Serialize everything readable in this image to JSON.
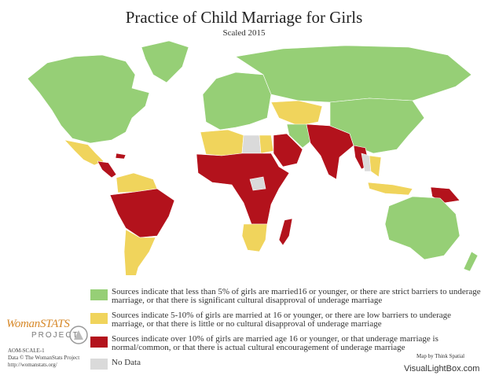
{
  "header": {
    "title": "Practice of Child Marriage for Girls",
    "subtitle": "Scaled 2015"
  },
  "legend": [
    {
      "label": "Sources indicate that less than 5% of girls are married16 or younger, or there are strict barriers to underage marriage, or that there is significant cultural disapproval of underage marriage",
      "color": "#96cf76"
    },
    {
      "label": "Sources indicate 5-10% of girls are married at 16 or younger, or there are low barriers to underage marriage, or that there is little or no cultural disapproval of underage marriage",
      "color": "#f0d45c"
    },
    {
      "label": "Sources indicate over 10% of girls are married age 16 or younger, or that underage marriage is normal/common, or that there is actual cultural encouragement of underage marriage",
      "color": "#b3121c"
    },
    {
      "label": "No Data",
      "color": "#dadada"
    }
  ],
  "logo": {
    "name": "WomanSTATS",
    "sub": "PROJECT"
  },
  "credits": {
    "scale": "AOM-SCALE-1",
    "data": "Data © The WomanStats Project",
    "url": "http://womanstats.org/",
    "map_by": "Map by Think Spatial",
    "site": "VisualLightBox.com"
  }
}
